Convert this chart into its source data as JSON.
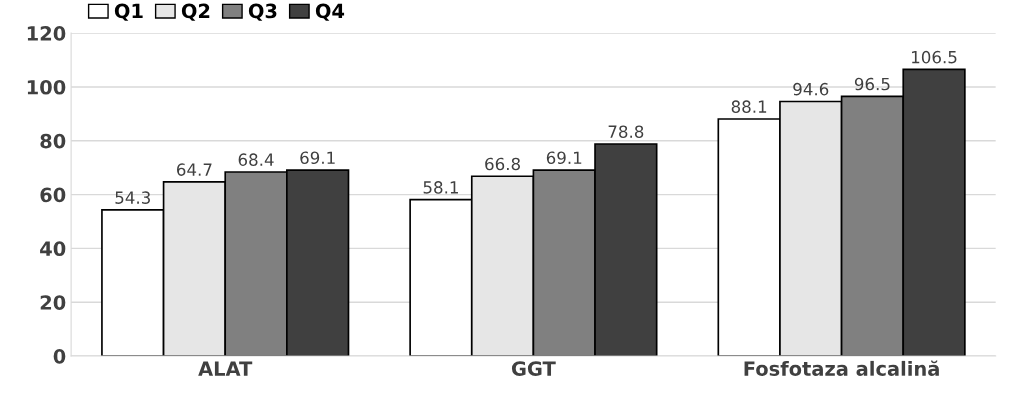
{
  "chart_data": {
    "type": "bar",
    "categories": [
      "ALAT",
      "GGT",
      "Fosfotaza alcalină"
    ],
    "series": [
      {
        "name": "Q1",
        "color": "#ffffff",
        "values": [
          54.3,
          58.1,
          88.1
        ]
      },
      {
        "name": "Q2",
        "color": "#e6e6e6",
        "values": [
          64.7,
          66.8,
          94.6
        ]
      },
      {
        "name": "Q3",
        "color": "#808080",
        "values": [
          68.4,
          69.1,
          96.5
        ]
      },
      {
        "name": "Q4",
        "color": "#404040",
        "values": [
          69.1,
          78.8,
          106.5
        ]
      }
    ],
    "ylim": [
      0,
      120
    ],
    "yticks": [
      0,
      20,
      40,
      60,
      80,
      100,
      120
    ],
    "grid": "y",
    "legend": "top left",
    "data_labels": true
  }
}
